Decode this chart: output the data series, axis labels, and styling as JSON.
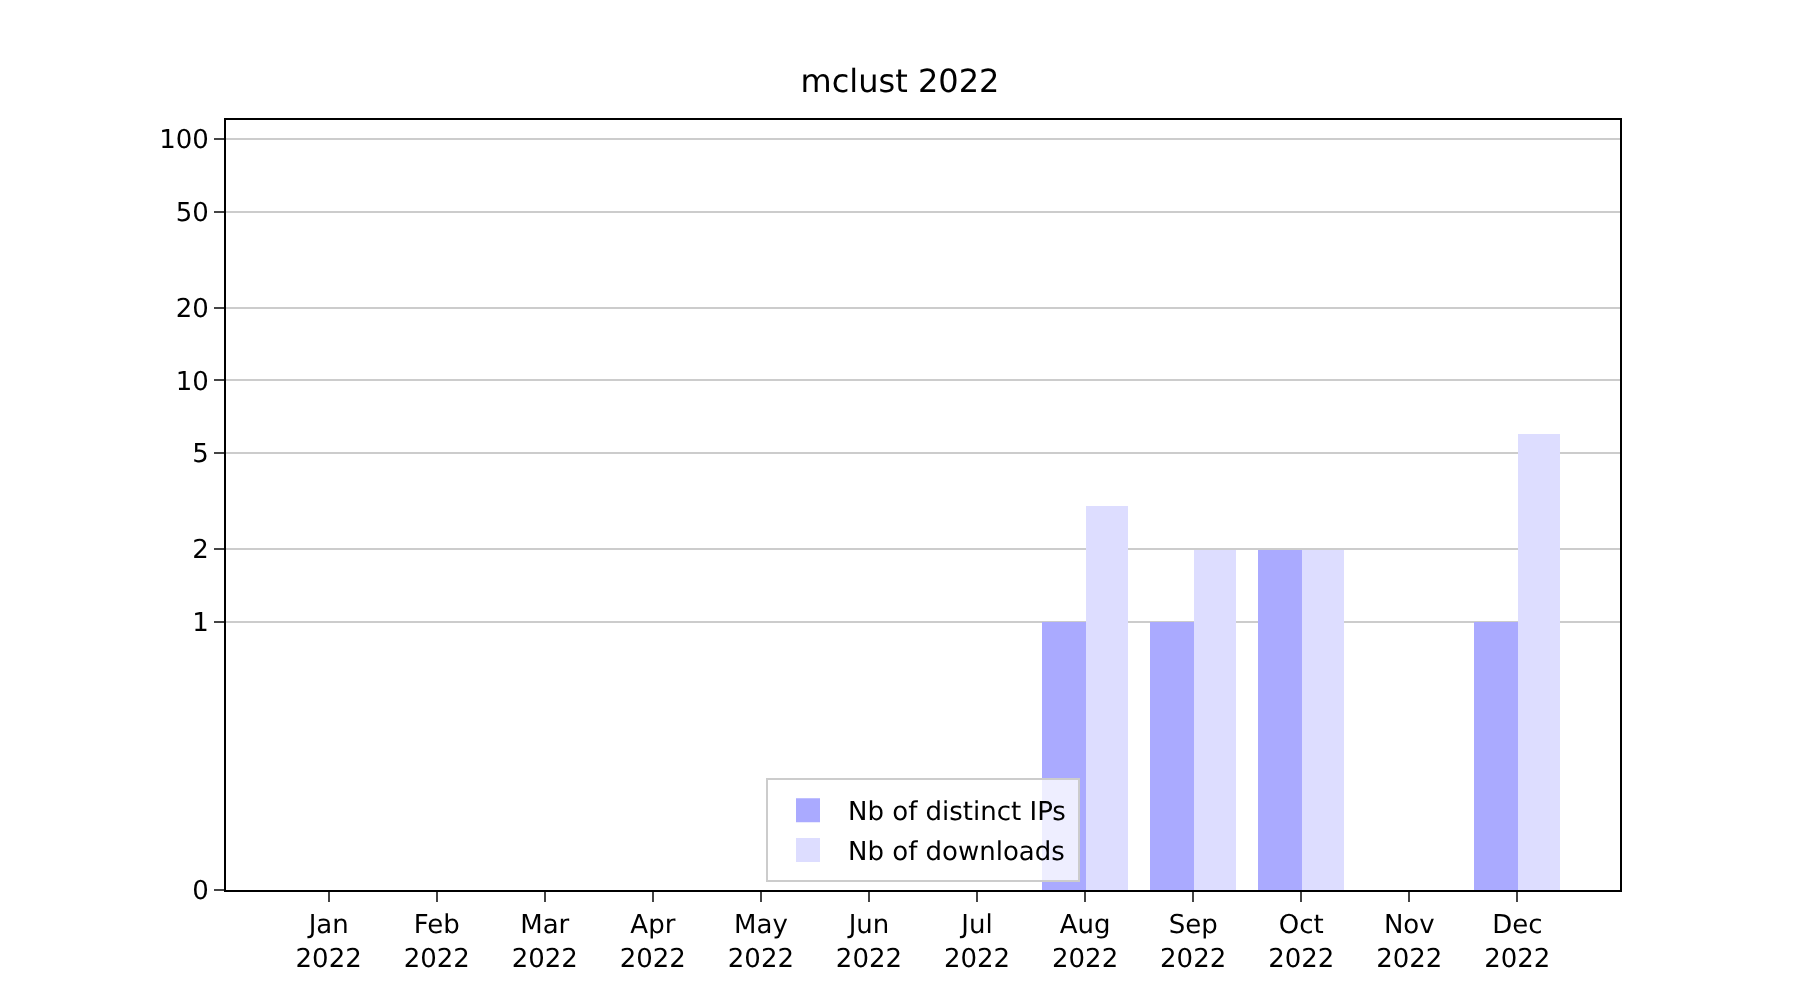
{
  "chart_data": {
    "type": "bar",
    "title": "mclust 2022",
    "categories": [
      "Jan\n2022",
      "Feb\n2022",
      "Mar\n2022",
      "Apr\n2022",
      "May\n2022",
      "Jun\n2022",
      "Jul\n2022",
      "Aug\n2022",
      "Sep\n2022",
      "Oct\n2022",
      "Nov\n2022",
      "Dec\n2022"
    ],
    "series": [
      {
        "name": "Nb of distinct IPs",
        "color": "#aaaaff",
        "values": [
          0,
          0,
          0,
          0,
          0,
          0,
          0,
          1,
          1,
          2,
          0,
          1
        ]
      },
      {
        "name": "Nb of downloads",
        "color": "#ddddff",
        "values": [
          0,
          0,
          0,
          0,
          0,
          0,
          0,
          3,
          2,
          2,
          0,
          6
        ]
      }
    ],
    "log": "y",
    "ylim": [
      0,
      120
    ],
    "yticks": [
      0,
      1,
      2,
      5,
      10,
      20,
      50,
      100
    ],
    "grid": "y",
    "legend": "bottom"
  }
}
